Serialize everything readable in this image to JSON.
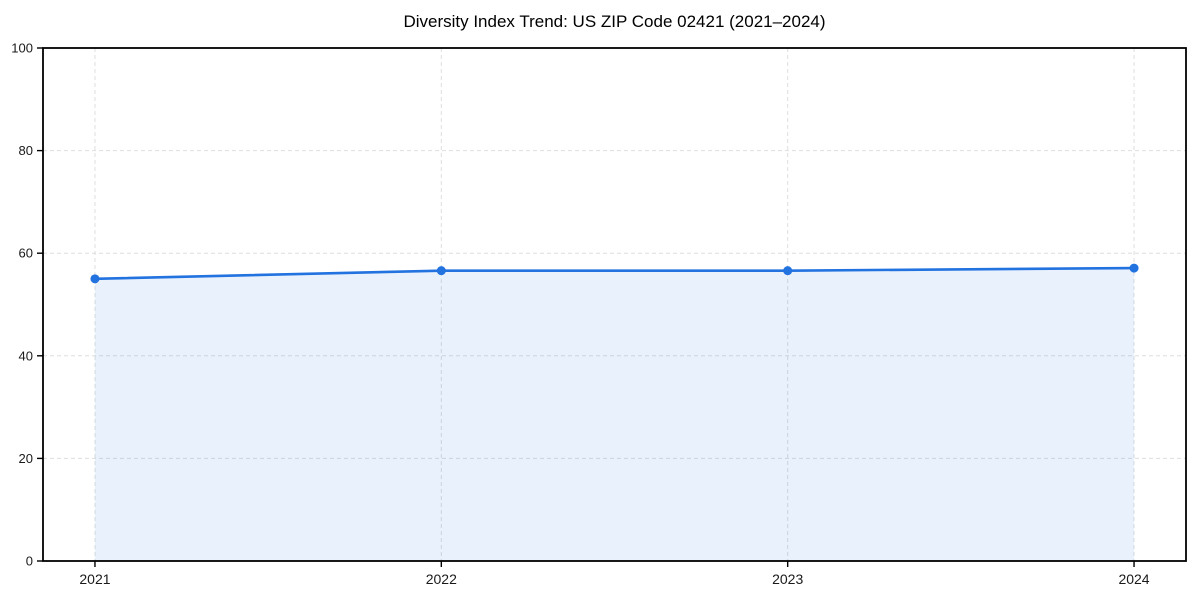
{
  "chart_data": {
    "type": "area",
    "title": "Diversity Index Trend: US ZIP Code 02421 (2021–2024)",
    "series_name": "Diversity Index",
    "x": [
      2021,
      2022,
      2023,
      2024
    ],
    "x_labels": [
      "2021",
      "2022",
      "2023",
      "2024"
    ],
    "values": [
      55.0,
      56.6,
      56.6,
      57.1
    ],
    "xlabel": "",
    "ylabel": "",
    "ylim": [
      0,
      100
    ],
    "yticks": [
      0,
      20,
      40,
      60,
      80,
      100
    ],
    "x_margin": 0.15,
    "grid": true,
    "grid_style": "dashed",
    "legend_position": "none",
    "marker": "circle",
    "colors": {
      "line": "#2272e0",
      "marker": "#2272e0",
      "fill": "#2272e0",
      "fill_opacity": 0.1,
      "grid": "#dedede",
      "spine": "#000000",
      "tick_text": "#1a1a1a",
      "title_text": "#000000",
      "background": "#ffffff"
    }
  }
}
